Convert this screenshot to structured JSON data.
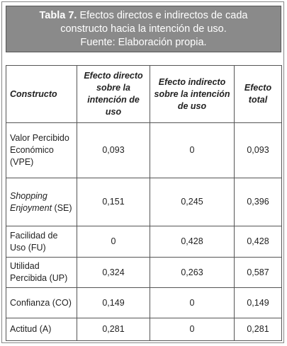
{
  "header": {
    "label": "Tabla 7.",
    "title": "Efectos directos e indirectos de cada constructo hacia la intención de uso.",
    "source": "Fuente: Elaboración propia."
  },
  "table": {
    "columns": [
      "Constructo",
      "Efecto directo sobre la intención de uso",
      "Efecto indirecto sobre la intención de uso",
      "Efecto total"
    ],
    "rows": [
      {
        "construct": "Valor Percibido Económico",
        "abbr": "(VPE)",
        "italic": false,
        "cells": [
          "0,093",
          "0",
          "0,093"
        ]
      },
      {
        "construct": "Shopping Enjoyment",
        "abbr": "(SE)",
        "italic": true,
        "cells": [
          "0,151",
          "0,245",
          "0,396"
        ]
      },
      {
        "construct": "Facilidad de Uso",
        "abbr": "(FU)",
        "italic": false,
        "cells": [
          "0",
          "0,428",
          "0,428"
        ]
      },
      {
        "construct": "Utilidad Percibida",
        "abbr": "(UP)",
        "italic": false,
        "cells": [
          "0,324",
          "0,263",
          "0,587"
        ]
      },
      {
        "construct": "Confianza",
        "abbr": "(CO)",
        "italic": false,
        "cells": [
          "0,149",
          "0",
          "0,149"
        ]
      },
      {
        "construct": "Actitud",
        "abbr": "(A)",
        "italic": false,
        "cells": [
          "0,281",
          "0",
          "0,281"
        ]
      }
    ]
  }
}
